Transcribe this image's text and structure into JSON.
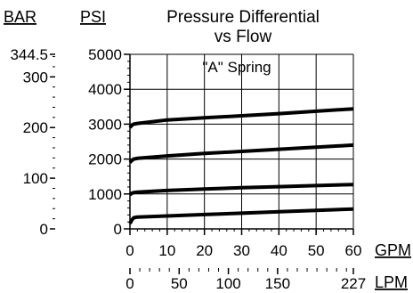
{
  "chart_data": {
    "type": "line",
    "title": "Pressure Differential",
    "subtitle": "vs Flow",
    "annotation": "\"A\" Spring",
    "x_axis": {
      "unit": "GPM",
      "range": [
        0,
        60
      ],
      "ticks": [
        0,
        10,
        20,
        30,
        40,
        50,
        60
      ],
      "tick_labels": [
        "0",
        "10",
        "20",
        "30",
        "40",
        "50",
        "60"
      ],
      "minor_step": 2
    },
    "x_axis_secondary": {
      "unit": "LPM",
      "range": [
        0,
        227
      ],
      "tick_labels": [
        "0",
        "50",
        "100",
        "150",
        "227"
      ],
      "label_values": [
        0,
        50,
        100,
        150,
        227
      ],
      "minor_step": 10
    },
    "y_axis": {
      "unit": "PSI",
      "range": [
        0,
        5000
      ],
      "ticks": [
        0,
        1000,
        2000,
        3000,
        4000,
        5000
      ],
      "tick_labels": [
        "0",
        "1000",
        "2000",
        "3000",
        "4000",
        "5000"
      ],
      "minor_step": 200
    },
    "y_axis_secondary": {
      "unit": "BAR",
      "range": [
        0,
        344.5
      ],
      "tick_labels": [
        "0",
        "100",
        "200",
        "300",
        "344.5"
      ],
      "label_values": [
        0,
        100,
        200,
        300,
        344.5
      ],
      "minor_step": 20
    },
    "grid": true,
    "series": [
      {
        "x": [
          0,
          0.5,
          1,
          2,
          10,
          20,
          30,
          40,
          50,
          60
        ],
        "values": [
          150,
          250,
          320,
          340,
          370,
          410,
          450,
          490,
          530,
          570
        ]
      },
      {
        "x": [
          0,
          0.5,
          1,
          2,
          10,
          20,
          30,
          40,
          50,
          60
        ],
        "values": [
          980,
          1020,
          1040,
          1050,
          1100,
          1140,
          1180,
          1210,
          1240,
          1270
        ]
      },
      {
        "x": [
          0,
          0.5,
          1,
          2,
          10,
          20,
          30,
          40,
          50,
          60
        ],
        "values": [
          1900,
          1960,
          2000,
          2020,
          2090,
          2160,
          2220,
          2280,
          2340,
          2400
        ]
      },
      {
        "x": [
          0,
          0.5,
          1,
          2,
          10,
          20,
          30,
          40,
          50,
          60
        ],
        "values": [
          2900,
          2970,
          3000,
          3020,
          3120,
          3180,
          3240,
          3300,
          3370,
          3440
        ]
      }
    ]
  }
}
